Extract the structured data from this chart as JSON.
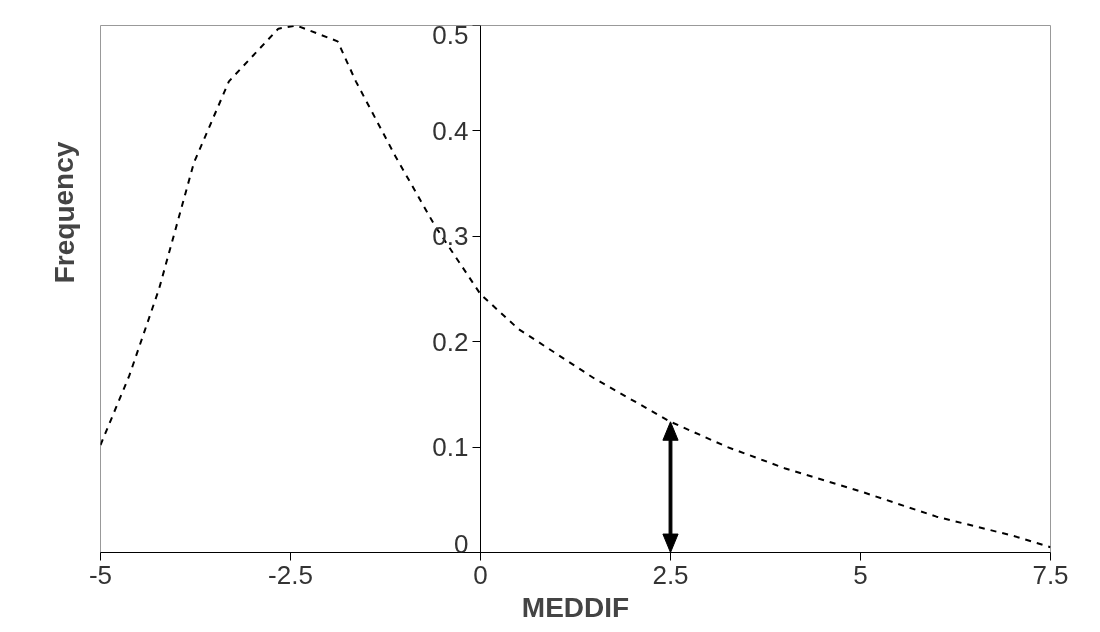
{
  "chart_data": {
    "type": "line",
    "xlabel": "MEDDIF",
    "ylabel": "Frequency",
    "x": [
      -5,
      -4.62,
      -4.23,
      -3.77,
      -3.31,
      -2.66,
      -2.42,
      -1.88,
      -1.64,
      -1.12,
      -0.6,
      0,
      0.5,
      1.5,
      2.5,
      3.25,
      4,
      5,
      6,
      7,
      7.5
    ],
    "series": [
      {
        "color": "#000000",
        "values": [
          0.102,
          0.168,
          0.25,
          0.37,
          0.447,
          0.497,
          0.5,
          0.485,
          0.447,
          0.376,
          0.31,
          0.245,
          0.212,
          0.165,
          0.124,
          0.1,
          0.08,
          0.058,
          0.034,
          0.016,
          0.005
        ]
      }
    ],
    "xlim": [
      -5,
      7.5
    ],
    "xticks": [
      -5,
      -2.5,
      0,
      2.5,
      5,
      7.5
    ],
    "ylim": [
      0,
      0.5
    ],
    "yticks": [
      0,
      0.1,
      0.2,
      0.3,
      0.4,
      0.5
    ],
    "ref_lines": [
      {
        "axis": "x",
        "value": 2.5,
        "color": "#000000"
      }
    ],
    "grid": false,
    "marker": "none",
    "line_style": "dashed"
  }
}
